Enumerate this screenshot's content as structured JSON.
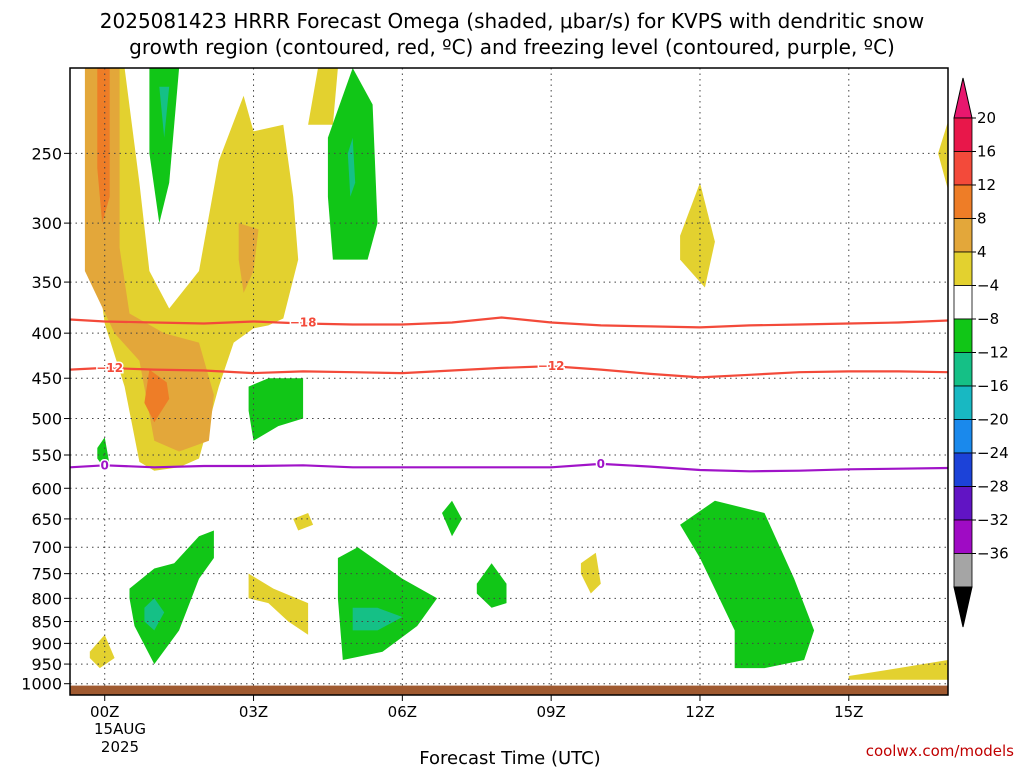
{
  "chart_data": {
    "type": "heatmap",
    "title_line1": "2025081423 HRRR Forecast Omega (shaded, μbar/s) for KVPS with dendritic snow",
    "title_line2": "growth region (contoured, red, ºC) and freezing level (contoured, purple, ºC)",
    "xlabel": "Forecast Time (UTC)",
    "ylabel": "",
    "x_ticks": [
      "00Z",
      "03Z",
      "06Z",
      "09Z",
      "12Z",
      "15Z"
    ],
    "x_tick_hours": [
      0,
      3,
      6,
      9,
      12,
      15
    ],
    "date_label": [
      "15AUG",
      "2025"
    ],
    "xlim": [
      -0.7,
      17.0
    ],
    "y_ticks": [
      250,
      300,
      350,
      400,
      450,
      500,
      550,
      600,
      650,
      700,
      750,
      800,
      850,
      900,
      950,
      1000
    ],
    "ylim": [
      1030,
      200
    ],
    "y_scale": "log",
    "grid": true,
    "colorbar": {
      "labels": [
        "20",
        "16",
        "12",
        "8",
        "4",
        "−4",
        "−8",
        "−12",
        "−16",
        "−20",
        "−24",
        "−28",
        "−32",
        "−36"
      ],
      "colors": [
        "#e8174a",
        "#f34a3a",
        "#ee7d27",
        "#e3a73a",
        "#e3d12f",
        "#ffffff",
        "#11c617",
        "#15c086",
        "#18b8c2",
        "#1a89ec",
        "#1c42d8",
        "#6114c4",
        "#9f0bc4",
        "#a5a5a5"
      ],
      "top_arrow_color": "#e8176e",
      "bottom_arrow_color": "#000000"
    },
    "legend_credit": "coolwx.com/models",
    "omega_regions": [
      {
        "color": "#e3d12f",
        "points": [
          [
            -0.6,
            200
          ],
          [
            -0.1,
            200
          ],
          [
            -0.2,
            320
          ],
          [
            0,
            390
          ],
          [
            0.4,
            460
          ],
          [
            0.7,
            560
          ],
          [
            1.0,
            573
          ],
          [
            1.5,
            568
          ],
          [
            1.9,
            555
          ],
          [
            2.3,
            460
          ],
          [
            2.6,
            410
          ],
          [
            3.0,
            395
          ],
          [
            3.3,
            392
          ],
          [
            3.6,
            385
          ],
          [
            3.9,
            330
          ],
          [
            3.8,
            280
          ],
          [
            3.6,
            232
          ],
          [
            3.0,
            236
          ],
          [
            2.8,
            215
          ],
          [
            2.3,
            255
          ],
          [
            1.9,
            340
          ],
          [
            1.3,
            375
          ],
          [
            0.9,
            340
          ],
          [
            0.7,
            270
          ],
          [
            0.4,
            200
          ],
          [
            4.3,
            200
          ],
          [
            4.1,
            232
          ],
          [
            4.6,
            232
          ],
          [
            4.7,
            200
          ],
          [
            -0.6,
            200
          ]
        ]
      },
      {
        "color": "#e3a73a",
        "points": [
          [
            -0.4,
            200
          ],
          [
            0.3,
            200
          ],
          [
            0.3,
            320
          ],
          [
            0.5,
            380
          ],
          [
            1.2,
            400
          ],
          [
            1.9,
            410
          ],
          [
            2.2,
            470
          ],
          [
            2.1,
            530
          ],
          [
            1.5,
            545
          ],
          [
            1.0,
            530
          ],
          [
            0.7,
            430
          ],
          [
            0.2,
            400
          ],
          [
            -0.4,
            340
          ],
          [
            -0.4,
            200
          ]
        ]
      },
      {
        "color": "#ee7d27",
        "points": [
          [
            -0.15,
            200
          ],
          [
            0.1,
            200
          ],
          [
            0.1,
            280
          ],
          [
            -0.05,
            300
          ],
          [
            -0.15,
            260
          ],
          [
            -0.15,
            200
          ]
        ]
      },
      {
        "color": "#ee7d27",
        "points": [
          [
            0.9,
            440
          ],
          [
            1.25,
            455
          ],
          [
            1.3,
            475
          ],
          [
            1.0,
            505
          ],
          [
            0.8,
            480
          ],
          [
            0.9,
            440
          ]
        ]
      },
      {
        "color": "#e3a73a",
        "points": [
          [
            2.7,
            300
          ],
          [
            3.1,
            305
          ],
          [
            3.0,
            340
          ],
          [
            2.8,
            360
          ],
          [
            2.7,
            330
          ],
          [
            2.7,
            300
          ]
        ]
      },
      {
        "color": "#e3d12f",
        "points": [
          [
            11.6,
            310
          ],
          [
            12.0,
            270
          ],
          [
            12.3,
            315
          ],
          [
            12.1,
            355
          ],
          [
            11.6,
            330
          ],
          [
            11.6,
            310
          ]
        ]
      },
      {
        "color": "#e3d12f",
        "points": [
          [
            9.6,
            730
          ],
          [
            9.9,
            710
          ],
          [
            10.0,
            770
          ],
          [
            9.8,
            790
          ],
          [
            9.6,
            750
          ],
          [
            9.6,
            730
          ]
        ]
      },
      {
        "color": "#e3d12f",
        "points": [
          [
            -0.3,
            920
          ],
          [
            0.0,
            880
          ],
          [
            0.2,
            935
          ],
          [
            -0.1,
            960
          ],
          [
            -0.3,
            935
          ],
          [
            -0.3,
            920
          ]
        ]
      },
      {
        "color": "#e3d12f",
        "points": [
          [
            2.9,
            750
          ],
          [
            3.4,
            780
          ],
          [
            4.1,
            810
          ],
          [
            4.1,
            880
          ],
          [
            3.7,
            850
          ],
          [
            3.3,
            810
          ],
          [
            2.9,
            800
          ],
          [
            2.9,
            750
          ]
        ]
      },
      {
        "color": "#e3d12f",
        "points": [
          [
            3.8,
            650
          ],
          [
            4.1,
            640
          ],
          [
            4.2,
            660
          ],
          [
            3.9,
            670
          ],
          [
            3.8,
            650
          ]
        ]
      },
      {
        "color": "#e3d12f",
        "points": [
          [
            17.0,
            230
          ],
          [
            16.8,
            250
          ],
          [
            17.0,
            275
          ],
          [
            17.0,
            230
          ]
        ]
      },
      {
        "color": "#e3d12f",
        "points": [
          [
            15.0,
            980
          ],
          [
            16.0,
            960
          ],
          [
            17.0,
            940
          ],
          [
            17.0,
            990
          ],
          [
            15.0,
            990
          ],
          [
            15.0,
            980
          ]
        ]
      },
      {
        "color": "#11c617",
        "points": [
          [
            0.9,
            200
          ],
          [
            1.5,
            200
          ],
          [
            1.3,
            270
          ],
          [
            1.1,
            300
          ],
          [
            0.9,
            250
          ],
          [
            0.9,
            200
          ]
        ]
      },
      {
        "color": "#11c617",
        "points": [
          [
            4.5,
            240
          ],
          [
            5.0,
            200
          ],
          [
            5.4,
            220
          ],
          [
            5.5,
            300
          ],
          [
            5.3,
            330
          ],
          [
            4.6,
            330
          ],
          [
            4.5,
            280
          ],
          [
            4.5,
            240
          ]
        ]
      },
      {
        "color": "#11c617",
        "points": [
          [
            2.9,
            460
          ],
          [
            3.3,
            450
          ],
          [
            4.0,
            450
          ],
          [
            4.0,
            500
          ],
          [
            3.5,
            510
          ],
          [
            3.0,
            530
          ],
          [
            2.9,
            490
          ],
          [
            2.9,
            460
          ]
        ]
      },
      {
        "color": "#11c617",
        "points": [
          [
            -0.15,
            540
          ],
          [
            0.0,
            525
          ],
          [
            0.1,
            565
          ],
          [
            0.0,
            570
          ],
          [
            -0.15,
            555
          ],
          [
            -0.15,
            540
          ]
        ]
      },
      {
        "color": "#11c617",
        "points": [
          [
            0.5,
            780
          ],
          [
            1.0,
            740
          ],
          [
            1.4,
            730
          ],
          [
            1.9,
            680
          ],
          [
            2.2,
            670
          ],
          [
            2.2,
            720
          ],
          [
            1.9,
            760
          ],
          [
            1.5,
            870
          ],
          [
            1.0,
            950
          ],
          [
            0.6,
            860
          ],
          [
            0.5,
            800
          ],
          [
            0.5,
            780
          ]
        ]
      },
      {
        "color": "#11c617",
        "points": [
          [
            4.7,
            720
          ],
          [
            5.1,
            700
          ],
          [
            6.0,
            760
          ],
          [
            6.7,
            800
          ],
          [
            6.3,
            860
          ],
          [
            5.6,
            920
          ],
          [
            4.8,
            940
          ],
          [
            4.7,
            800
          ],
          [
            4.7,
            720
          ]
        ]
      },
      {
        "color": "#11c617",
        "points": [
          [
            6.8,
            640
          ],
          [
            7.0,
            620
          ],
          [
            7.2,
            650
          ],
          [
            7.0,
            680
          ],
          [
            6.8,
            640
          ]
        ]
      },
      {
        "color": "#11c617",
        "points": [
          [
            7.5,
            770
          ],
          [
            7.8,
            730
          ],
          [
            8.1,
            770
          ],
          [
            8.1,
            810
          ],
          [
            7.8,
            820
          ],
          [
            7.5,
            790
          ],
          [
            7.5,
            770
          ]
        ]
      },
      {
        "color": "#11c617",
        "points": [
          [
            11.6,
            660
          ],
          [
            12.3,
            620
          ],
          [
            13.3,
            640
          ],
          [
            13.9,
            760
          ],
          [
            14.3,
            870
          ],
          [
            14.1,
            940
          ],
          [
            13.3,
            960
          ],
          [
            12.7,
            960
          ],
          [
            12.7,
            870
          ],
          [
            12.0,
            720
          ],
          [
            11.6,
            660
          ]
        ]
      },
      {
        "color": "#15c086",
        "points": [
          [
            0.8,
            820
          ],
          [
            1.0,
            800
          ],
          [
            1.2,
            830
          ],
          [
            1.0,
            870
          ],
          [
            0.8,
            850
          ],
          [
            0.8,
            820
          ]
        ]
      },
      {
        "color": "#15c086",
        "points": [
          [
            5.0,
            820
          ],
          [
            5.5,
            820
          ],
          [
            6.0,
            840
          ],
          [
            5.5,
            870
          ],
          [
            5.0,
            870
          ],
          [
            5.0,
            820
          ]
        ]
      },
      {
        "color": "#15c086",
        "points": [
          [
            1.1,
            210
          ],
          [
            1.3,
            210
          ],
          [
            1.2,
            240
          ],
          [
            1.1,
            210
          ]
        ]
      },
      {
        "color": "#15c086",
        "points": [
          [
            4.9,
            250
          ],
          [
            5.0,
            240
          ],
          [
            5.05,
            270
          ],
          [
            4.95,
            280
          ],
          [
            4.9,
            250
          ]
        ]
      }
    ],
    "contours": [
      {
        "name": "-18",
        "kind": "dendritic",
        "color": "#f34a3a",
        "label_at_hour": 4.0,
        "label_at_index": null,
        "points": [
          [
            -0.7,
            386
          ],
          [
            0,
            388
          ],
          [
            1,
            389
          ],
          [
            2,
            390
          ],
          [
            3,
            388
          ],
          [
            4,
            390
          ],
          [
            5,
            391
          ],
          [
            6,
            391
          ],
          [
            7,
            389
          ],
          [
            8,
            384
          ],
          [
            9,
            389
          ],
          [
            10,
            392
          ],
          [
            11,
            393
          ],
          [
            12,
            394
          ],
          [
            13,
            392
          ],
          [
            14,
            391
          ],
          [
            15,
            390
          ],
          [
            16,
            389
          ],
          [
            17,
            387
          ]
        ]
      },
      {
        "name": "-12",
        "kind": "dendritic",
        "color": "#f34a3a",
        "label_at_hour": 0.0,
        "label_at_hour2": 9.0,
        "points": [
          [
            -0.7,
            440
          ],
          [
            0,
            438
          ],
          [
            1,
            440
          ],
          [
            2,
            441
          ],
          [
            3,
            444
          ],
          [
            4,
            442
          ],
          [
            5,
            443
          ],
          [
            6,
            444
          ],
          [
            7,
            441
          ],
          [
            8,
            438
          ],
          [
            9,
            436
          ],
          [
            10,
            440
          ],
          [
            11,
            445
          ],
          [
            12,
            449
          ],
          [
            13,
            446
          ],
          [
            14,
            443
          ],
          [
            15,
            442
          ],
          [
            16,
            442
          ],
          [
            17,
            443
          ]
        ]
      },
      {
        "name": "0",
        "kind": "freezing",
        "color": "#a013c8",
        "label_at_hour": 0.0,
        "label_at_hour2": 10.0,
        "points": [
          [
            -0.7,
            568
          ],
          [
            0,
            565
          ],
          [
            1,
            568
          ],
          [
            2,
            566
          ],
          [
            3,
            566
          ],
          [
            4,
            565
          ],
          [
            5,
            568
          ],
          [
            6,
            568
          ],
          [
            7,
            568
          ],
          [
            8,
            568
          ],
          [
            9,
            568
          ],
          [
            10,
            563
          ],
          [
            11,
            567
          ],
          [
            12,
            572
          ],
          [
            13,
            574
          ],
          [
            14,
            573
          ],
          [
            15,
            571
          ],
          [
            16,
            570
          ],
          [
            17,
            569
          ]
        ]
      }
    ],
    "contour_labels": [
      {
        "text": "−18",
        "hour": 4.0,
        "p": 389,
        "color": "#f34a3a"
      },
      {
        "text": "−12",
        "hour": 0.1,
        "p": 438,
        "color": "#f34a3a"
      },
      {
        "text": "−12",
        "hour": 9.0,
        "p": 436,
        "color": "#f34a3a"
      },
      {
        "text": "0",
        "hour": 0.0,
        "p": 565,
        "color": "#a013c8"
      },
      {
        "text": "0",
        "hour": 10.0,
        "p": 563,
        "color": "#a013c8"
      }
    ],
    "ground": {
      "color": "#a05a30",
      "top_p": 1005
    }
  }
}
